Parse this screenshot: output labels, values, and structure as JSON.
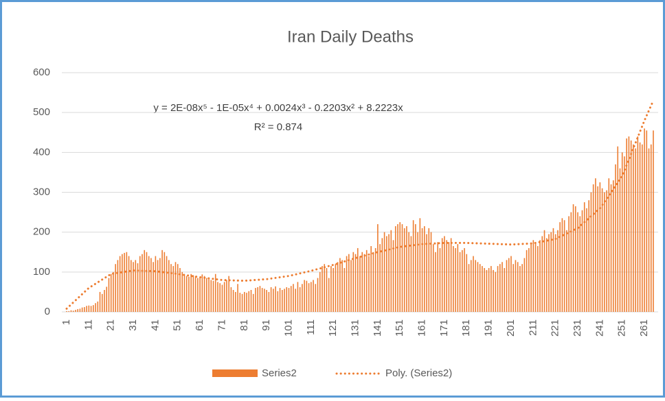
{
  "chart_data": {
    "type": "bar",
    "title": "Iran Daily Deaths",
    "categories": [
      "1",
      null,
      null,
      null,
      null,
      null,
      null,
      null,
      null,
      null,
      "11",
      null,
      null,
      null,
      null,
      null,
      null,
      null,
      null,
      null,
      "21",
      null,
      null,
      null,
      null,
      null,
      null,
      null,
      null,
      null,
      "31",
      null,
      null,
      null,
      null,
      null,
      null,
      null,
      null,
      null,
      "41",
      null,
      null,
      null,
      null,
      null,
      null,
      null,
      null,
      null,
      "51",
      null,
      null,
      null,
      null,
      null,
      null,
      null,
      null,
      null,
      "61",
      null,
      null,
      null,
      null,
      null,
      null,
      null,
      null,
      null,
      "71",
      null,
      null,
      null,
      null,
      null,
      null,
      null,
      null,
      null,
      "81",
      null,
      null,
      null,
      null,
      null,
      null,
      null,
      null,
      null,
      "91",
      null,
      null,
      null,
      null,
      null,
      null,
      null,
      null,
      null,
      "101",
      null,
      null,
      null,
      null,
      null,
      null,
      null,
      null,
      null,
      "111",
      null,
      null,
      null,
      null,
      null,
      null,
      null,
      null,
      null,
      "121",
      null,
      null,
      null,
      null,
      null,
      null,
      null,
      null,
      null,
      "131",
      null,
      null,
      null,
      null,
      null,
      null,
      null,
      null,
      null,
      "141",
      null,
      null,
      null,
      null,
      null,
      null,
      null,
      null,
      null,
      "151",
      null,
      null,
      null,
      null,
      null,
      null,
      null,
      null,
      null,
      "161",
      null,
      null,
      null,
      null,
      null,
      null,
      null,
      null,
      null,
      "171",
      null,
      null,
      null,
      null,
      null,
      null,
      null,
      null,
      null,
      "181",
      null,
      null,
      null,
      null,
      null,
      null,
      null,
      null,
      null,
      "191",
      null,
      null,
      null,
      null,
      null,
      null,
      null,
      null,
      null,
      "201",
      null,
      null,
      null,
      null,
      null,
      null,
      null,
      null,
      null,
      "211",
      null,
      null,
      null,
      null,
      null,
      null,
      null,
      null,
      null,
      "221",
      null,
      null,
      null,
      null,
      null,
      null,
      null,
      null,
      null,
      "231",
      null,
      null,
      null,
      null,
      null,
      null,
      null,
      null,
      null,
      "241",
      null,
      null,
      null,
      null,
      null,
      null,
      null,
      null,
      null,
      "251",
      null,
      null,
      null,
      null,
      null,
      null,
      null,
      null,
      null,
      "261",
      null,
      null,
      null,
      null
    ],
    "series": [
      {
        "name": "Series2",
        "color": "#ed7d31",
        "values": [
          2,
          2,
          4,
          3,
          5,
          7,
          8,
          11,
          12,
          15,
          16,
          15,
          17,
          22,
          26,
          50,
          45,
          55,
          63,
          85,
          95,
          100,
          120,
          130,
          140,
          145,
          148,
          150,
          140,
          130,
          125,
          130,
          122,
          140,
          145,
          155,
          150,
          140,
          135,
          125,
          140,
          130,
          135,
          155,
          150,
          140,
          130,
          120,
          115,
          125,
          120,
          110,
          100,
          95,
          90,
          88,
          95,
          92,
          90,
          85,
          88,
          94,
          90,
          85,
          82,
          80,
          78,
          95,
          75,
          72,
          68,
          75,
          80,
          90,
          62,
          55,
          50,
          70,
          48,
          45,
          50,
          48,
          52,
          55,
          45,
          60,
          62,
          65,
          60,
          58,
          55,
          50,
          62,
          58,
          64,
          52,
          60,
          55,
          58,
          62,
          60,
          65,
          70,
          58,
          75,
          62,
          70,
          80,
          78,
          72,
          75,
          80,
          70,
          85,
          100,
          115,
          120,
          110,
          85,
          115,
          110,
          120,
          125,
          135,
          130,
          110,
          140,
          145,
          130,
          150,
          145,
          160,
          140,
          150,
          145,
          155,
          140,
          165,
          150,
          160,
          220,
          170,
          185,
          200,
          190,
          195,
          205,
          180,
          215,
          220,
          225,
          220,
          210,
          215,
          200,
          190,
          230,
          220,
          200,
          235,
          210,
          215,
          195,
          210,
          200,
          170,
          150,
          175,
          160,
          185,
          190,
          180,
          175,
          185,
          165,
          160,
          170,
          150,
          155,
          160,
          145,
          120,
          130,
          140,
          130,
          125,
          120,
          115,
          110,
          105,
          110,
          115,
          105,
          100,
          115,
          120,
          125,
          110,
          130,
          135,
          140,
          120,
          130,
          125,
          115,
          120,
          135,
          155,
          160,
          170,
          180,
          175,
          165,
          180,
          190,
          205,
          185,
          195,
          200,
          210,
          195,
          205,
          225,
          235,
          230,
          205,
          240,
          250,
          270,
          265,
          250,
          240,
          255,
          275,
          260,
          280,
          300,
          320,
          335,
          315,
          325,
          310,
          300,
          305,
          335,
          320,
          330,
          370,
          415,
          360,
          400,
          390,
          435,
          440,
          430,
          420,
          410,
          440,
          425,
          420,
          460,
          455,
          410,
          420,
          455
        ]
      }
    ],
    "trendline": {
      "name": "Poly. (Series2)",
      "color": "#ed7d31",
      "x": [
        1,
        11,
        21,
        31,
        41,
        51,
        61,
        71,
        81,
        91,
        101,
        111,
        121,
        131,
        141,
        151,
        161,
        171,
        181,
        191,
        201,
        211,
        221,
        231,
        241,
        251,
        261,
        265
      ],
      "values": [
        8,
        60,
        95,
        104,
        102,
        95,
        87,
        80,
        78,
        82,
        90,
        103,
        118,
        135,
        150,
        163,
        170,
        173,
        173,
        171,
        169,
        172,
        183,
        210,
        260,
        340,
        480,
        530
      ],
      "equation": "y = 2E-08x⁵ - 1E-05x⁴ + 0.0024x³ - 0.2203x² + 8.2223x",
      "r2": "R² = 0.874"
    },
    "ylim": [
      0,
      600
    ],
    "yticks": [
      0,
      100,
      200,
      300,
      400,
      500,
      600
    ],
    "grid": true,
    "legend": "bottom"
  }
}
